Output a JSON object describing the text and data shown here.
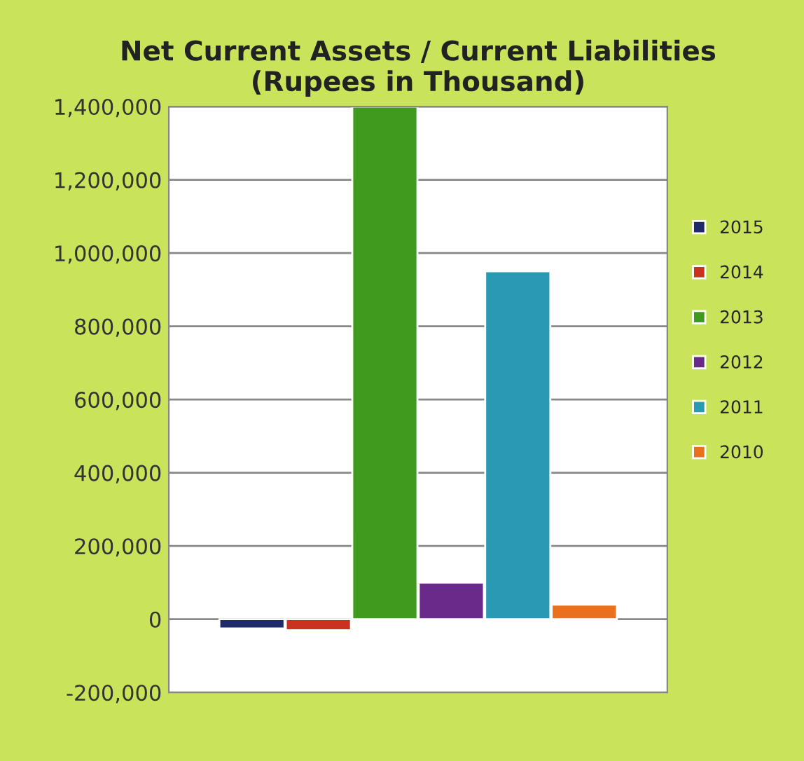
{
  "chart_data": {
    "type": "bar",
    "title": "Net Current Assets / Current Liabilities\n(Rupees in Thousand)",
    "categories": [
      null
    ],
    "series": [
      {
        "name": "2015",
        "color": "#1f2a6b",
        "values": [
          -25000
        ]
      },
      {
        "name": "2014",
        "color": "#c8321e",
        "values": [
          -30000
        ]
      },
      {
        "name": "2013",
        "color": "#3f9a1e",
        "values": [
          1400000
        ]
      },
      {
        "name": "2012",
        "color": "#6a2a8a",
        "values": [
          100000
        ]
      },
      {
        "name": "2011",
        "color": "#2a9ab4",
        "values": [
          950000
        ]
      },
      {
        "name": "2010",
        "color": "#e8701e",
        "values": [
          40000
        ]
      }
    ],
    "ylim": [
      -200000,
      1400000
    ],
    "yticks": [
      {
        "value": -200000,
        "label": "-200,000"
      },
      {
        "value": 0,
        "label": "0"
      },
      {
        "value": 200000,
        "label": "200,000"
      },
      {
        "value": 400000,
        "label": "400,000"
      },
      {
        "value": 600000,
        "label": "600,000"
      },
      {
        "value": 800000,
        "label": "800,000"
      },
      {
        "value": 1000000,
        "label": "1,000,000"
      },
      {
        "value": 1200000,
        "label": "1,200,000"
      },
      {
        "value": 1400000,
        "label": "1,400,000"
      }
    ],
    "grid": "y",
    "legend": "right"
  }
}
